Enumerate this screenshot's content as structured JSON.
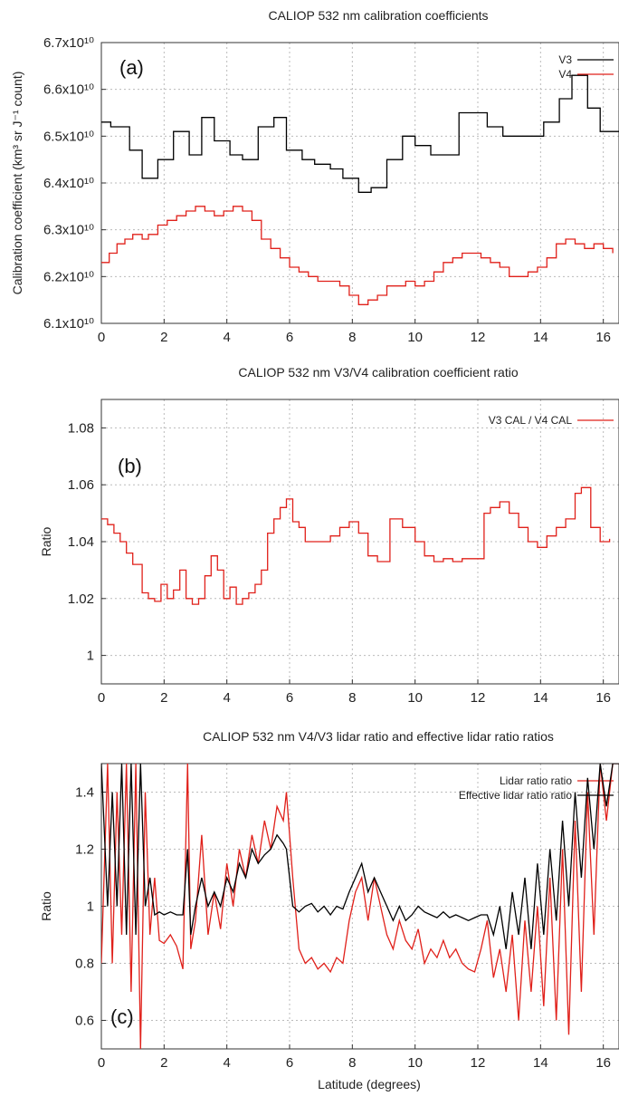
{
  "chart_data": [
    {
      "type": "line",
      "panel_label": "(a)",
      "title": "CALIOP 532 nm calibration coefficients",
      "ylabel": "Calibration coefficient (km³ sr J⁻¹ count)",
      "xlim": [
        0,
        16.5
      ],
      "ylim": [
        61000000000.0,
        67000000000.0
      ],
      "x_ticks": [
        0,
        2,
        4,
        6,
        8,
        10,
        12,
        14,
        16
      ],
      "y_ticks": [
        61000000000.0,
        62000000000.0,
        63000000000.0,
        64000000000.0,
        65000000000.0,
        66000000000.0,
        67000000000.0
      ],
      "y_tick_labels": [
        "6.1x10¹⁰",
        "6.2x10¹⁰",
        "6.3x10¹⁰",
        "6.4x10¹⁰",
        "6.5x10¹⁰",
        "6.6x10¹⁰",
        "6.7x10¹⁰"
      ],
      "grid": true,
      "legend_position": "top-right",
      "series": [
        {
          "name": "V3",
          "color": "#000000",
          "step": true,
          "x": [
            0,
            0.3,
            0.9,
            1.3,
            1.8,
            2.3,
            2.8,
            3.2,
            3.6,
            4.1,
            4.5,
            5.0,
            5.5,
            5.9,
            6.4,
            6.8,
            7.3,
            7.7,
            8.2,
            8.6,
            9.1,
            9.6,
            10.0,
            10.5,
            11.0,
            11.4,
            12.3,
            12.8,
            13.2,
            14.1,
            14.6,
            15.0,
            15.5,
            15.9,
            16.5
          ],
          "y": [
            65300000000.0,
            65200000000.0,
            64700000000.0,
            64100000000.0,
            64500000000.0,
            65100000000.0,
            64600000000.0,
            65400000000.0,
            64900000000.0,
            64600000000.0,
            64500000000.0,
            65200000000.0,
            65400000000.0,
            64700000000.0,
            64500000000.0,
            64400000000.0,
            64300000000.0,
            64100000000.0,
            63800000000.0,
            63900000000.0,
            64500000000.0,
            65000000000.0,
            64800000000.0,
            64600000000.0,
            64600000000.0,
            65500000000.0,
            65200000000.0,
            65000000000.0,
            65000000000.0,
            65300000000.0,
            65800000000.0,
            66300000000.0,
            65600000000.0,
            65100000000.0,
            65100000000.0
          ]
        },
        {
          "name": "V4",
          "color": "#e0201a",
          "step": true,
          "x": [
            0,
            0.25,
            0.5,
            0.75,
            1.0,
            1.3,
            1.5,
            1.8,
            2.1,
            2.4,
            2.7,
            3.0,
            3.3,
            3.6,
            3.9,
            4.2,
            4.5,
            4.8,
            5.1,
            5.4,
            5.7,
            6.0,
            6.3,
            6.6,
            6.9,
            7.3,
            7.6,
            7.9,
            8.2,
            8.5,
            8.8,
            9.1,
            9.4,
            9.7,
            10.0,
            10.3,
            10.6,
            10.9,
            11.2,
            11.5,
            11.8,
            12.1,
            12.4,
            12.7,
            13.0,
            13.3,
            13.6,
            13.9,
            14.2,
            14.5,
            14.8,
            15.1,
            15.4,
            15.7,
            16.0,
            16.3
          ],
          "y": [
            62300000000.0,
            62500000000.0,
            62700000000.0,
            62800000000.0,
            62900000000.0,
            62800000000.0,
            62900000000.0,
            63100000000.0,
            63200000000.0,
            63300000000.0,
            63400000000.0,
            63500000000.0,
            63400000000.0,
            63300000000.0,
            63400000000.0,
            63500000000.0,
            63400000000.0,
            63200000000.0,
            62800000000.0,
            62600000000.0,
            62400000000.0,
            62200000000.0,
            62100000000.0,
            62000000000.0,
            61900000000.0,
            61900000000.0,
            61800000000.0,
            61600000000.0,
            61400000000.0,
            61500000000.0,
            61600000000.0,
            61800000000.0,
            61800000000.0,
            61900000000.0,
            61800000000.0,
            61900000000.0,
            62100000000.0,
            62300000000.0,
            62400000000.0,
            62500000000.0,
            62500000000.0,
            62400000000.0,
            62300000000.0,
            62200000000.0,
            62000000000.0,
            62000000000.0,
            62100000000.0,
            62200000000.0,
            62400000000.0,
            62700000000.0,
            62800000000.0,
            62700000000.0,
            62600000000.0,
            62700000000.0,
            62600000000.0,
            62500000000.0
          ]
        }
      ]
    },
    {
      "type": "line",
      "panel_label": "(b)",
      "title": "CALIOP 532 nm V3/V4 calibration coefficient ratio",
      "ylabel": "Ratio",
      "xlim": [
        0,
        16.5
      ],
      "ylim": [
        0.99,
        1.09
      ],
      "x_ticks": [
        0,
        2,
        4,
        6,
        8,
        10,
        12,
        14,
        16
      ],
      "y_ticks": [
        1.0,
        1.02,
        1.04,
        1.06,
        1.08
      ],
      "y_tick_labels": [
        "1",
        "1.02",
        "1.04",
        "1.06",
        "1.08"
      ],
      "grid": true,
      "legend_position": "top-right",
      "series": [
        {
          "name": "V3 CAL / V4 CAL",
          "color": "#e0201a",
          "step": true,
          "x": [
            0,
            0.2,
            0.4,
            0.6,
            0.8,
            1.0,
            1.3,
            1.5,
            1.7,
            1.9,
            2.1,
            2.3,
            2.5,
            2.7,
            2.9,
            3.1,
            3.3,
            3.5,
            3.7,
            3.9,
            4.1,
            4.3,
            4.5,
            4.7,
            4.9,
            5.1,
            5.3,
            5.5,
            5.7,
            5.9,
            6.1,
            6.3,
            6.5,
            6.9,
            7.3,
            7.6,
            7.9,
            8.2,
            8.5,
            8.8,
            9.2,
            9.6,
            10.0,
            10.3,
            10.6,
            10.9,
            11.2,
            11.5,
            12.2,
            12.4,
            12.7,
            13.0,
            13.3,
            13.6,
            13.9,
            14.2,
            14.5,
            14.8,
            15.1,
            15.3,
            15.6,
            15.9,
            16.2
          ],
          "y": [
            1.048,
            1.046,
            1.043,
            1.04,
            1.036,
            1.032,
            1.022,
            1.02,
            1.019,
            1.025,
            1.02,
            1.023,
            1.03,
            1.02,
            1.018,
            1.02,
            1.028,
            1.035,
            1.03,
            1.02,
            1.024,
            1.018,
            1.02,
            1.022,
            1.025,
            1.03,
            1.043,
            1.048,
            1.052,
            1.055,
            1.047,
            1.045,
            1.04,
            1.04,
            1.042,
            1.045,
            1.047,
            1.043,
            1.035,
            1.033,
            1.048,
            1.045,
            1.04,
            1.035,
            1.033,
            1.034,
            1.033,
            1.034,
            1.05,
            1.052,
            1.054,
            1.05,
            1.045,
            1.04,
            1.038,
            1.042,
            1.045,
            1.048,
            1.057,
            1.059,
            1.045,
            1.04,
            1.041
          ]
        }
      ]
    },
    {
      "type": "line",
      "panel_label": "(c)",
      "title": "CALIOP 532 nm V4/V3 lidar ratio and effective lidar ratio ratios",
      "xlabel": "Latitude (degrees)",
      "ylabel": "Ratio",
      "xlim": [
        0,
        16.5
      ],
      "ylim": [
        0.5,
        1.5
      ],
      "x_ticks": [
        0,
        2,
        4,
        6,
        8,
        10,
        12,
        14,
        16
      ],
      "y_ticks": [
        0.6,
        0.8,
        1.0,
        1.2,
        1.4
      ],
      "y_tick_labels": [
        "0.6",
        "0.8",
        "1",
        "1.2",
        "1.4"
      ],
      "grid": true,
      "legend_position": "top-right",
      "series": [
        {
          "name": "Lidar ratio ratio",
          "color": "#e0201a",
          "x": [
            0,
            0.2,
            0.35,
            0.5,
            0.65,
            0.8,
            0.95,
            1.1,
            1.25,
            1.4,
            1.55,
            1.7,
            1.85,
            2.0,
            2.2,
            2.4,
            2.6,
            2.75,
            2.85,
            3.0,
            3.2,
            3.4,
            3.6,
            3.8,
            4.0,
            4.2,
            4.4,
            4.6,
            4.8,
            5.0,
            5.2,
            5.4,
            5.6,
            5.8,
            5.9,
            6.1,
            6.3,
            6.5,
            6.7,
            6.9,
            7.1,
            7.3,
            7.5,
            7.7,
            7.9,
            8.1,
            8.3,
            8.5,
            8.7,
            8.9,
            9.1,
            9.3,
            9.5,
            9.7,
            9.9,
            10.1,
            10.3,
            10.5,
            10.7,
            10.9,
            11.1,
            11.3,
            11.5,
            11.7,
            11.9,
            12.1,
            12.3,
            12.5,
            12.7,
            12.9,
            13.1,
            13.3,
            13.5,
            13.7,
            13.9,
            14.1,
            14.3,
            14.5,
            14.7,
            14.9,
            15.1,
            15.3,
            15.5,
            15.7,
            15.9,
            16.1,
            16.3,
            16.5
          ],
          "y": [
            0.8,
            1.5,
            0.8,
            1.4,
            0.9,
            1.5,
            0.7,
            1.5,
            0.5,
            1.4,
            0.9,
            1.1,
            0.88,
            0.87,
            0.9,
            0.86,
            0.78,
            1.5,
            0.85,
            0.95,
            1.25,
            0.9,
            1.05,
            0.92,
            1.15,
            1.0,
            1.2,
            1.1,
            1.25,
            1.15,
            1.3,
            1.2,
            1.35,
            1.3,
            1.4,
            1.1,
            0.85,
            0.8,
            0.82,
            0.78,
            0.8,
            0.77,
            0.82,
            0.8,
            0.95,
            1.05,
            1.1,
            0.95,
            1.1,
            1.0,
            0.9,
            0.85,
            0.95,
            0.88,
            0.85,
            0.92,
            0.8,
            0.85,
            0.82,
            0.88,
            0.82,
            0.85,
            0.8,
            0.78,
            0.77,
            0.85,
            0.95,
            0.75,
            0.85,
            0.7,
            0.9,
            0.6,
            0.95,
            0.7,
            1.0,
            0.65,
            1.1,
            0.6,
            1.2,
            0.55,
            1.3,
            0.7,
            1.4,
            0.9,
            1.5,
            1.3,
            1.5,
            1.5
          ]
        },
        {
          "name": "Effective lidar ratio ratio",
          "color": "#000000",
          "x": [
            0,
            0.2,
            0.35,
            0.5,
            0.65,
            0.8,
            0.95,
            1.1,
            1.25,
            1.4,
            1.55,
            1.7,
            1.85,
            2.0,
            2.2,
            2.4,
            2.6,
            2.75,
            2.85,
            3.0,
            3.2,
            3.4,
            3.6,
            3.8,
            4.0,
            4.2,
            4.4,
            4.6,
            4.8,
            5.0,
            5.2,
            5.4,
            5.6,
            5.8,
            5.9,
            6.1,
            6.3,
            6.5,
            6.7,
            6.9,
            7.1,
            7.3,
            7.5,
            7.7,
            7.9,
            8.1,
            8.3,
            8.5,
            8.7,
            8.9,
            9.1,
            9.3,
            9.5,
            9.7,
            9.9,
            10.1,
            10.3,
            10.5,
            10.7,
            10.9,
            11.1,
            11.3,
            11.5,
            11.7,
            11.9,
            12.1,
            12.3,
            12.5,
            12.7,
            12.9,
            13.1,
            13.3,
            13.5,
            13.7,
            13.9,
            14.1,
            14.3,
            14.5,
            14.7,
            14.9,
            15.1,
            15.3,
            15.5,
            15.7,
            15.9,
            16.1,
            16.3,
            16.5
          ],
          "y": [
            1.5,
            1.0,
            1.4,
            1.0,
            1.5,
            0.9,
            1.5,
            0.9,
            1.5,
            1.0,
            1.1,
            0.97,
            0.98,
            0.97,
            0.98,
            0.97,
            0.97,
            1.2,
            0.9,
            1.0,
            1.1,
            1.0,
            1.05,
            1.0,
            1.1,
            1.05,
            1.15,
            1.1,
            1.2,
            1.15,
            1.18,
            1.2,
            1.25,
            1.22,
            1.2,
            1.0,
            0.98,
            1.0,
            1.01,
            0.98,
            1.0,
            0.97,
            1.0,
            0.99,
            1.05,
            1.1,
            1.15,
            1.05,
            1.1,
            1.05,
            1.0,
            0.95,
            1.0,
            0.95,
            0.97,
            1.0,
            0.98,
            0.97,
            0.96,
            0.98,
            0.96,
            0.97,
            0.96,
            0.95,
            0.96,
            0.97,
            0.97,
            0.9,
            1.0,
            0.85,
            1.05,
            0.9,
            1.1,
            0.85,
            1.15,
            0.9,
            1.2,
            0.95,
            1.3,
            1.0,
            1.4,
            1.1,
            1.45,
            1.2,
            1.5,
            1.35,
            1.5,
            1.5
          ]
        }
      ]
    }
  ]
}
